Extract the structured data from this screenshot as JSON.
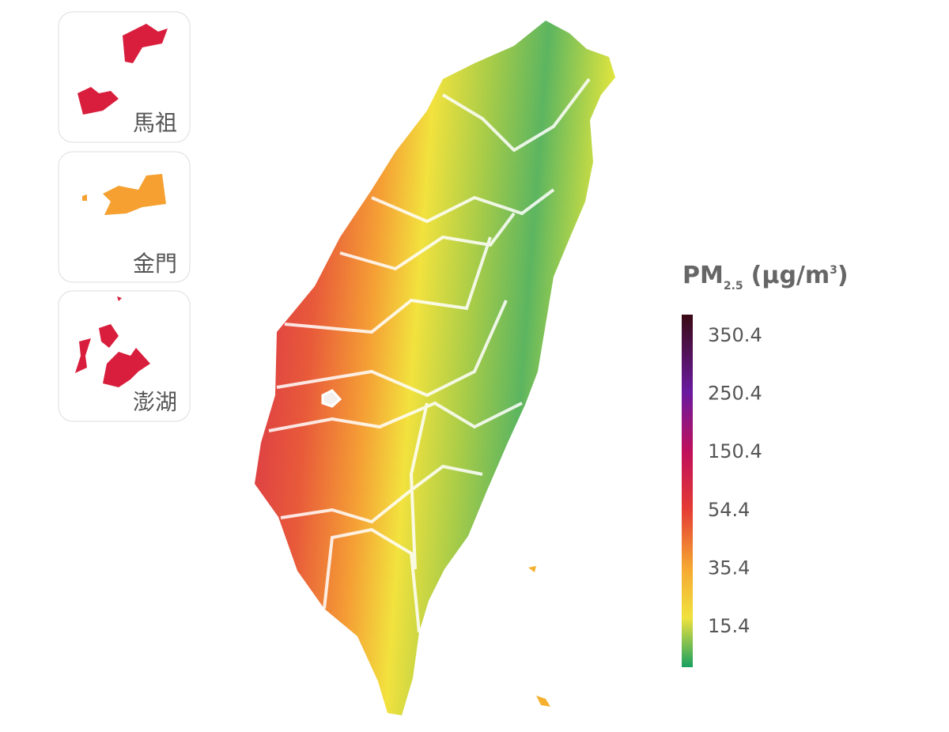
{
  "insets": [
    {
      "label": "馬祖"
    },
    {
      "label": "金門"
    },
    {
      "label": "澎湖"
    }
  ],
  "legend": {
    "title": {
      "main": "PM",
      "subscript": "2.5",
      "unit_open": "(μg/m",
      "superscript": "3",
      "unit_close": ")"
    },
    "ticks": [
      350.4,
      250.4,
      150.4,
      54.4,
      35.4,
      15.4
    ]
  }
}
